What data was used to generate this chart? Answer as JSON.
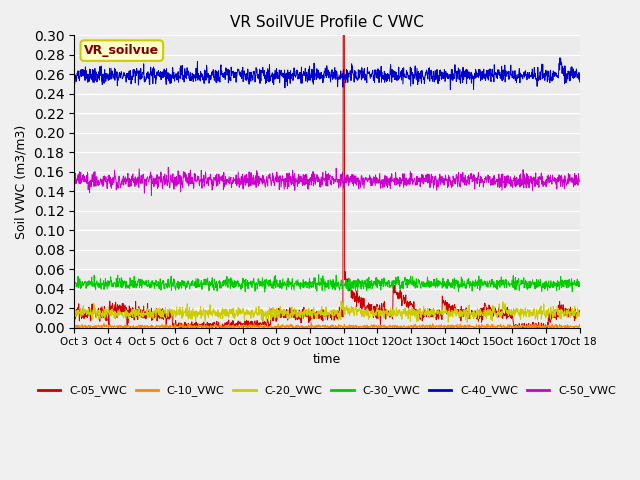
{
  "title": "VR SoilVUE Profile C VWC",
  "ylabel": "Soil VWC (m3/m3)",
  "xlabel": "time",
  "annotation": "VR_soilvue",
  "ylim": [
    0.0,
    0.3
  ],
  "yticks": [
    0.0,
    0.02,
    0.04,
    0.06,
    0.08,
    0.1,
    0.12,
    0.14,
    0.16,
    0.18,
    0.2,
    0.22,
    0.24,
    0.26,
    0.28,
    0.3
  ],
  "num_points": 1440,
  "series": {
    "C-05_VWC": {
      "color": "#cc0000"
    },
    "C-10_VWC": {
      "color": "#ff8800"
    },
    "C-20_VWC": {
      "color": "#cccc00"
    },
    "C-30_VWC": {
      "color": "#00cc00"
    },
    "C-40_VWC": {
      "color": "#0000cc"
    },
    "C-50_VWC": {
      "color": "#cc00cc"
    }
  },
  "xtick_labels": [
    "Oct 3",
    "Oct 4",
    "Oct 5",
    "Oct 6",
    "Oct 7",
    "Oct 8",
    "Oct 9",
    "Oct 10",
    "Oct 11",
    "Oct 12",
    "Oct 13",
    "Oct 14",
    "Oct 15",
    "Oct 16",
    "Oct 17",
    "Oct 18"
  ],
  "legend_order": [
    "C-05_VWC",
    "C-10_VWC",
    "C-20_VWC",
    "C-30_VWC",
    "C-40_VWC",
    "C-50_VWC"
  ],
  "bg_color": "#ebebeb",
  "fig_bg": "#f0f0f0",
  "linewidth": 0.7
}
